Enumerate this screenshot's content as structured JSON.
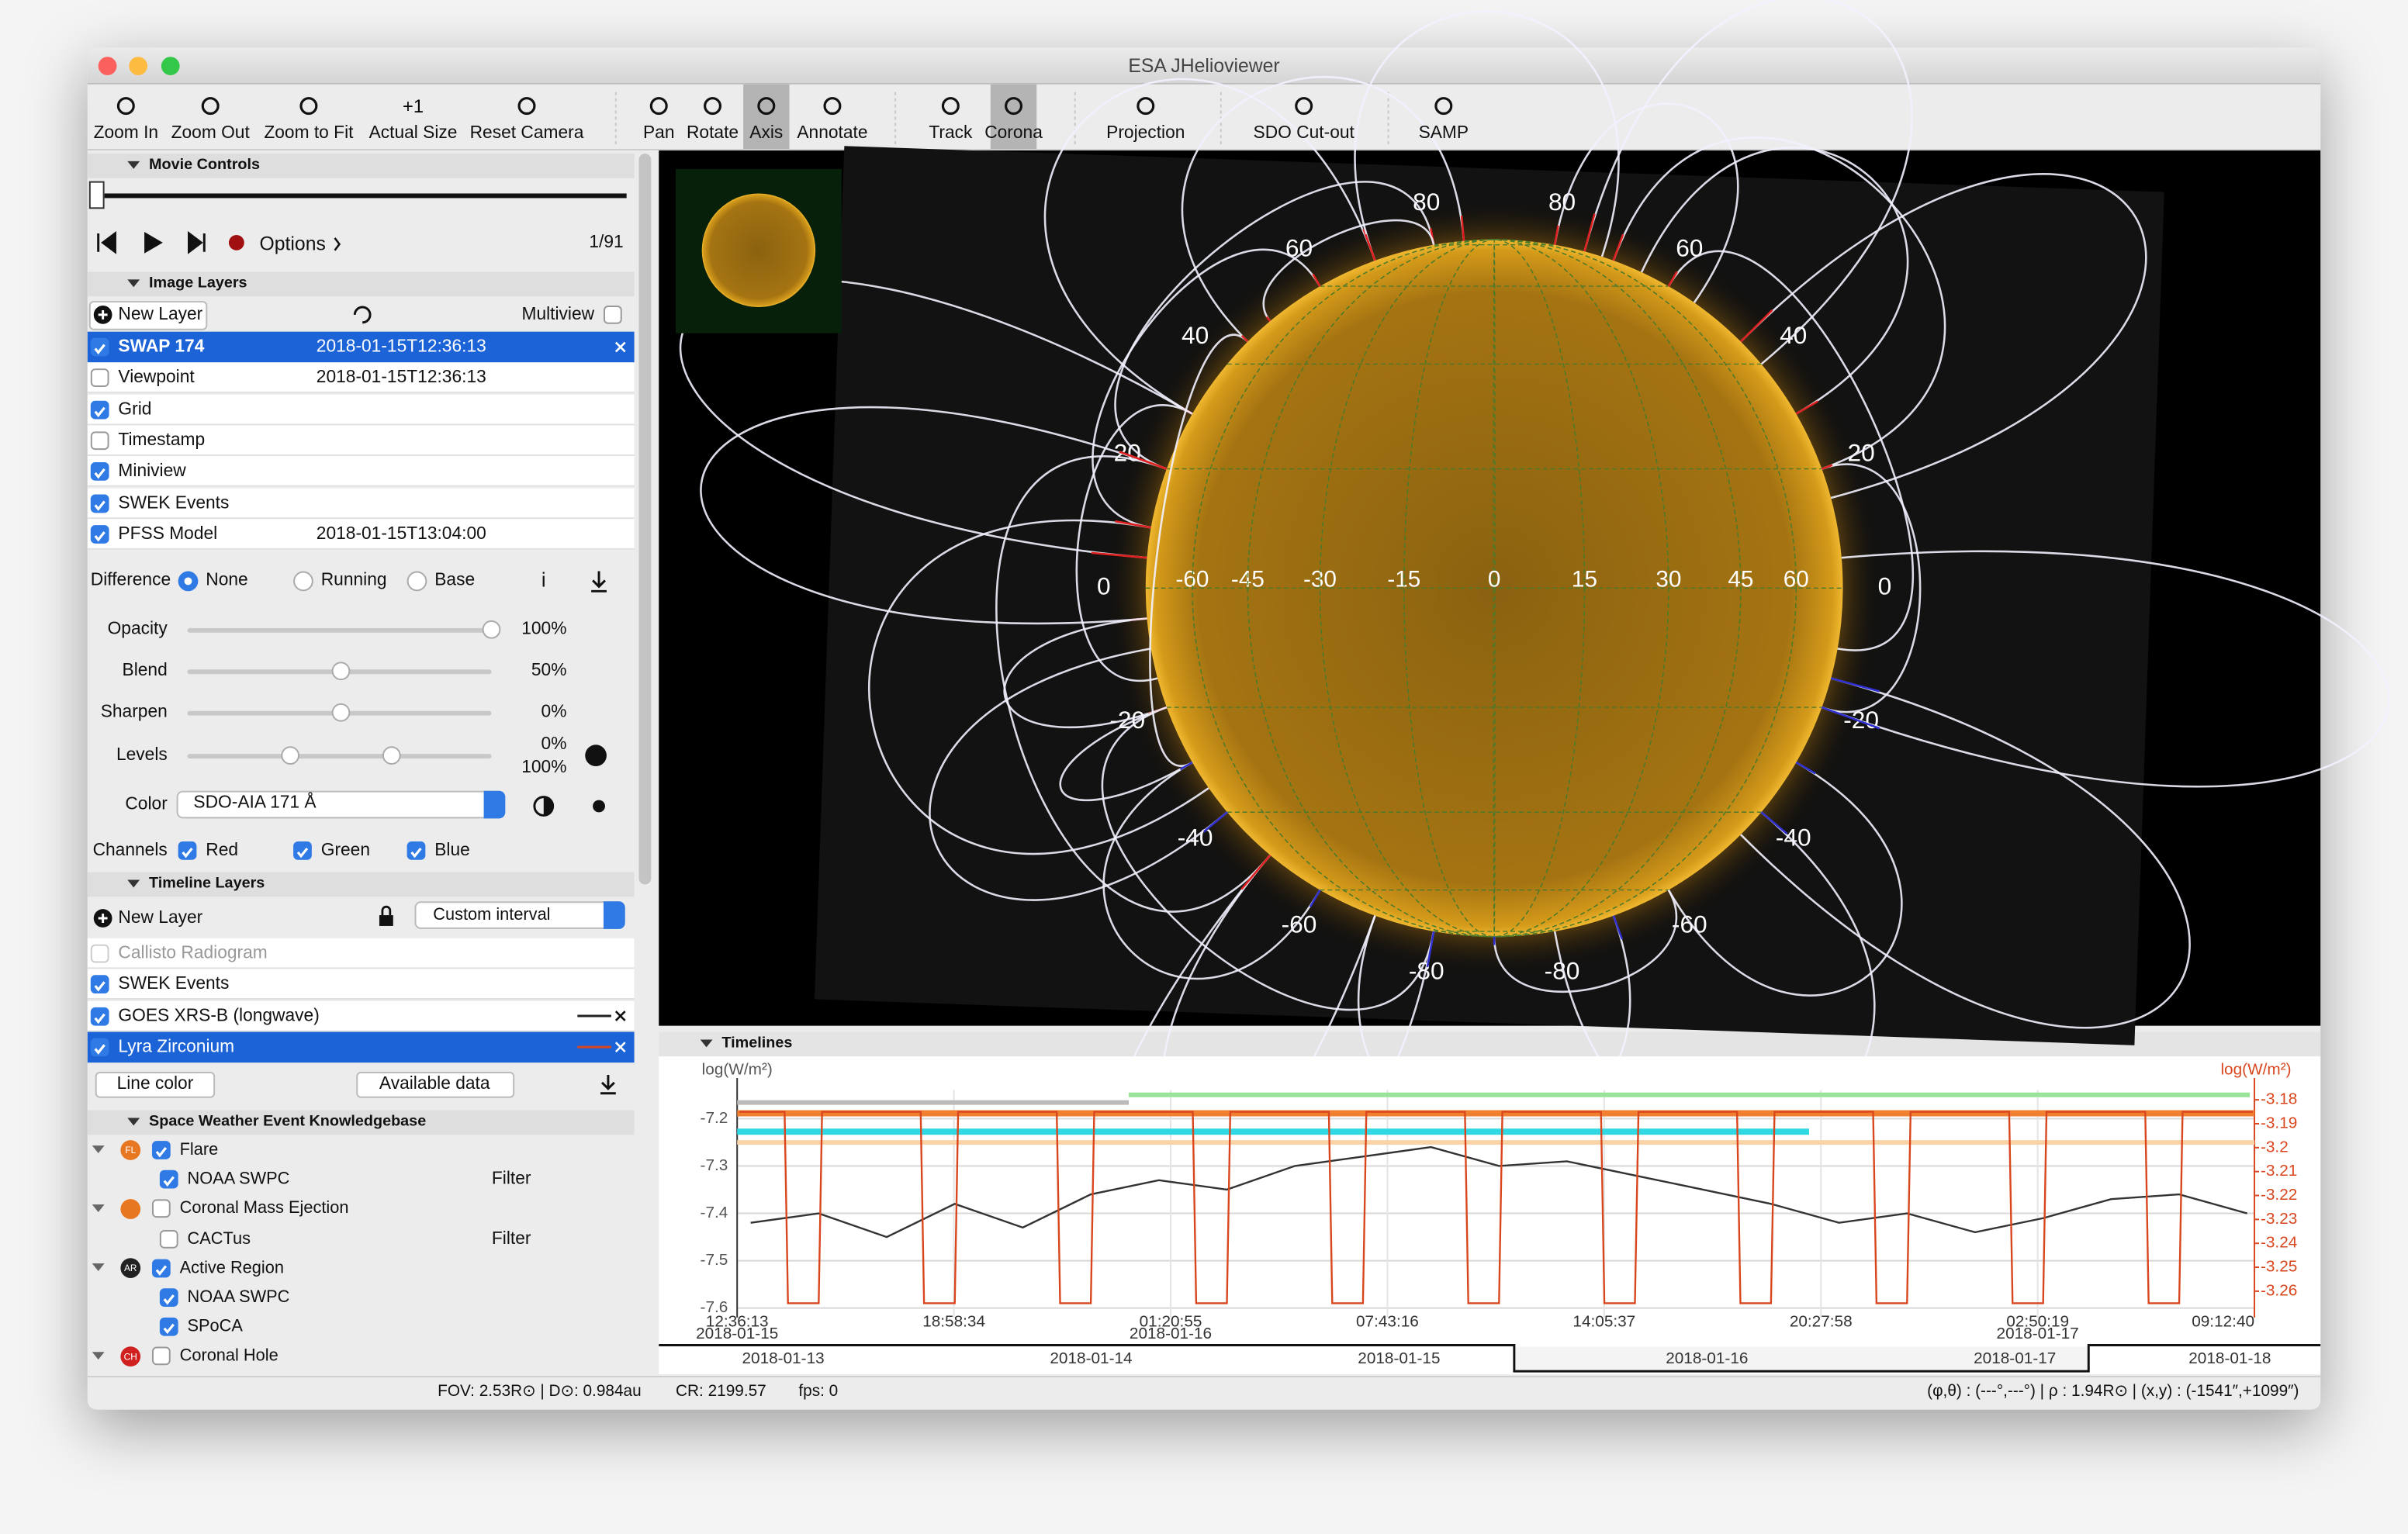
{
  "window": {
    "title": "ESA JHelioviewer"
  },
  "toolbar": {
    "buttons": [
      "Zoom In",
      "Zoom Out",
      "Zoom to Fit",
      "Actual Size",
      "Reset Camera",
      "Pan",
      "Rotate",
      "Axis",
      "Annotate",
      "Track",
      "Corona",
      "Projection",
      "SDO Cut-out",
      "SAMP"
    ],
    "pressed": [
      7,
      10
    ],
    "actual_size_icon": "+1"
  },
  "movie_controls": {
    "title": "Movie Controls",
    "options": "Options",
    "frame": "1/91"
  },
  "image_layers": {
    "title": "Image Layers",
    "new_layer": "New Layer",
    "multiview": "Multiview",
    "layers": [
      {
        "name": "SWAP 174",
        "time": "2018-01-15T12:36:13",
        "checked": true,
        "selected": true
      },
      {
        "name": "Viewpoint",
        "time": "2018-01-15T12:36:13",
        "checked": false
      },
      {
        "name": "Grid",
        "checked": true
      },
      {
        "name": "Timestamp",
        "checked": false
      },
      {
        "name": "Miniview",
        "checked": true
      },
      {
        "name": "SWEK Events",
        "checked": true
      },
      {
        "name": "PFSS Model",
        "time": "2018-01-15T13:04:00",
        "checked": true
      }
    ]
  },
  "adjustments": {
    "difference": {
      "label": "Difference",
      "options": [
        "None",
        "Running",
        "Base"
      ],
      "selected": 0
    },
    "info_icon": "i",
    "sliders": [
      {
        "label": "Opacity",
        "value": "100%"
      },
      {
        "label": "Blend",
        "value": "50%"
      },
      {
        "label": "Sharpen",
        "value": "0%"
      }
    ],
    "levels": {
      "label": "Levels",
      "values": [
        "0%",
        "100%"
      ]
    },
    "color": {
      "label": "Color",
      "value": "SDO-AIA 171 Å"
    },
    "channels": {
      "label": "Channels",
      "options": [
        "Red",
        "Green",
        "Blue"
      ]
    }
  },
  "timeline_layers": {
    "title": "Timeline Layers",
    "new_layer": "New Layer",
    "interval": "Custom interval",
    "layers": [
      {
        "name": "Callisto Radiogram",
        "checked": false,
        "enabled": false
      },
      {
        "name": "SWEK Events",
        "checked": true
      },
      {
        "name": "GOES XRS-B (longwave)",
        "checked": true,
        "line": "#222222"
      },
      {
        "name": "Lyra Zirconium",
        "checked": true,
        "line": "#d9461e",
        "selected": true
      }
    ],
    "line_color": "Line color",
    "available_data": "Available data"
  },
  "swek": {
    "title": "Space Weather Event Knowledgebase",
    "filter": "Filter",
    "groups": [
      {
        "name": "Flare",
        "icon": "FL",
        "color": "#e87722",
        "checked": true,
        "sources": [
          {
            "name": "NOAA SWPC",
            "checked": true,
            "filter": true
          }
        ]
      },
      {
        "name": "Coronal Mass Ejection",
        "color": "#e87722",
        "checked": false,
        "sources": [
          {
            "name": "CACTus",
            "checked": false,
            "filter": true
          }
        ]
      },
      {
        "name": "Active Region",
        "icon": "AR",
        "color": "#222222",
        "checked": true,
        "sources": [
          {
            "name": "NOAA SWPC",
            "checked": true,
            "filter": false
          },
          {
            "name": "SPoCA",
            "checked": true,
            "filter": false
          }
        ]
      },
      {
        "name": "Coronal Hole",
        "icon": "CH",
        "color": "#d02020",
        "checked": false,
        "sources": []
      }
    ]
  },
  "viewport": {
    "latitude_labels": [
      80,
      60,
      40,
      20,
      0,
      -20,
      -40,
      -60,
      -80
    ],
    "longitude_labels": [
      -60,
      -45,
      -30,
      -15,
      0,
      15,
      30,
      45,
      60
    ]
  },
  "timelines": {
    "title": "Timelines",
    "chart": {
      "type": "line",
      "ylabel": "log(W/m²)",
      "y2label": "log(W/m²)",
      "xlim": [
        "2018-01-15T12:36:13",
        "2018-01-17T09:12:40"
      ],
      "xticks": [
        {
          "value": "2018-01-15T12:36:13",
          "label": "12:36:13"
        },
        {
          "value": "2018-01-15T18:58:34",
          "label": "18:58:34"
        },
        {
          "value": "2018-01-16T01:20:55",
          "label": "01:20:55"
        },
        {
          "value": "2018-01-16T07:43:16",
          "label": "07:43:16"
        },
        {
          "value": "2018-01-16T14:05:37",
          "label": "14:05:37"
        },
        {
          "value": "2018-01-16T20:27:58",
          "label": "20:27:58"
        },
        {
          "value": "2018-01-17T02:50:19",
          "label": "02:50:19"
        },
        {
          "value": "2018-01-17T09:12:40",
          "label": "09:12:40"
        }
      ],
      "xdates": [
        {
          "value": "2018-01-15T12:36:13",
          "label": "2018-01-15"
        },
        {
          "value": "2018-01-16T01:20:55",
          "label": "2018-01-16"
        },
        {
          "value": "2018-01-17T02:50:19",
          "label": "2018-01-17"
        }
      ],
      "ylim": [
        -7.62,
        -7.14
      ],
      "yticks": [
        -7.2,
        -7.3,
        -7.4,
        -7.5,
        -7.6
      ],
      "y2lim": [
        -3.271,
        -3.176
      ],
      "y2ticks": [
        -3.18,
        -3.19,
        -3.2,
        -3.21,
        -3.22,
        -3.23,
        -3.24,
        -3.25,
        -3.26
      ],
      "grid": true,
      "series": [
        {
          "color": "#333333",
          "x": [
            "2018-01-15T13:00",
            "2018-01-15T15:00",
            "2018-01-15T17:00",
            "2018-01-15T19:00",
            "2018-01-15T21:00",
            "2018-01-15T23:00",
            "2018-01-16T01:00",
            "2018-01-16T03:00",
            "2018-01-16T05:00",
            "2018-01-16T07:00",
            "2018-01-16T09:00",
            "2018-01-16T11:00",
            "2018-01-16T13:00",
            "2018-01-16T15:00",
            "2018-01-16T17:00",
            "2018-01-16T19:00",
            "2018-01-16T21:00",
            "2018-01-16T23:00",
            "2018-01-17T01:00",
            "2018-01-17T03:00",
            "2018-01-17T05:00",
            "2018-01-17T07:00",
            "2018-01-17T09:00"
          ],
          "values": [
            -7.42,
            -7.4,
            -7.45,
            -7.38,
            -7.43,
            -7.36,
            -7.33,
            -7.35,
            -7.3,
            -7.28,
            -7.26,
            -7.3,
            -7.29,
            -7.32,
            -7.35,
            -7.38,
            -7.42,
            -7.4,
            -7.44,
            -7.41,
            -7.37,
            -7.36,
            -7.4
          ]
        },
        {
          "color": "#d9461e",
          "axis": "y2",
          "x": [
            "2018-01-15T12:40",
            "2018-01-15T14:00",
            "2018-01-15T14:06",
            "2018-01-15T15:00",
            "2018-01-15T15:06",
            "2018-01-15T18:00",
            "2018-01-15T18:06",
            "2018-01-15T19:00",
            "2018-01-15T19:06",
            "2018-01-15T22:00",
            "2018-01-15T22:06",
            "2018-01-15T23:00",
            "2018-01-15T23:06",
            "2018-01-16T02:00",
            "2018-01-16T02:06",
            "2018-01-16T03:00",
            "2018-01-16T03:06",
            "2018-01-16T06:00",
            "2018-01-16T06:06",
            "2018-01-16T07:00",
            "2018-01-16T07:06",
            "2018-01-16T10:00",
            "2018-01-16T10:06",
            "2018-01-16T11:00",
            "2018-01-16T11:06",
            "2018-01-16T14:00",
            "2018-01-16T14:06",
            "2018-01-16T15:00",
            "2018-01-16T15:06",
            "2018-01-16T18:00",
            "2018-01-16T18:06",
            "2018-01-16T19:00",
            "2018-01-16T19:06",
            "2018-01-16T22:00",
            "2018-01-16T22:06",
            "2018-01-16T23:00",
            "2018-01-16T23:06",
            "2018-01-17T02:00",
            "2018-01-17T02:06",
            "2018-01-17T03:00",
            "2018-01-17T03:06",
            "2018-01-17T06:00",
            "2018-01-17T06:06",
            "2018-01-17T07:00",
            "2018-01-17T07:06",
            "2018-01-17T09:10"
          ],
          "values": [
            -3.185,
            -3.185,
            -3.265,
            -3.265,
            -3.185,
            -3.185,
            -3.265,
            -3.265,
            -3.185,
            -3.185,
            -3.265,
            -3.265,
            -3.185,
            -3.185,
            -3.265,
            -3.265,
            -3.185,
            -3.185,
            -3.265,
            -3.265,
            -3.185,
            -3.185,
            -3.265,
            -3.265,
            -3.185,
            -3.185,
            -3.265,
            -3.265,
            -3.185,
            -3.185,
            -3.265,
            -3.265,
            -3.185,
            -3.185,
            -3.265,
            -3.265,
            -3.185,
            -3.185,
            -3.265,
            -3.265,
            -3.185,
            -3.185,
            -3.265,
            -3.265,
            -3.185,
            -3.185
          ]
        }
      ]
    },
    "overview": [
      "2018-01-13",
      "2018-01-14",
      "2018-01-15",
      "2018-01-16",
      "2018-01-17",
      "2018-01-18"
    ]
  },
  "status": {
    "fov": "FOV: 2.53R⊙ | D⊙: 0.984au",
    "cr": "CR: 2199.57",
    "fps": "fps: 0",
    "coords": "(φ,θ) : (---°,---°) | ρ : 1.94R⊙ | (x,y) : (-1541″,+1099″)"
  }
}
